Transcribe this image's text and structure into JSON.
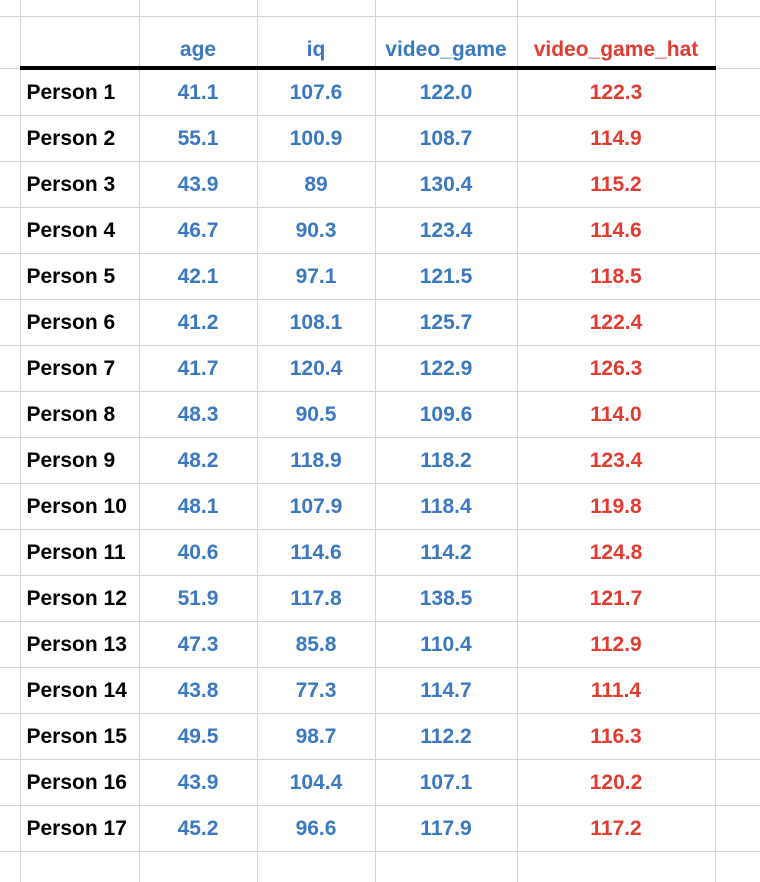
{
  "sheet": {
    "colors": {
      "data": "#3a78c2",
      "predicted": "#e23b30",
      "label": "#000000",
      "grid": "#d4d4d4",
      "header_rule": "#000000"
    },
    "columns": [
      {
        "key": "age",
        "label": "age",
        "color": "#3a78c2"
      },
      {
        "key": "iq",
        "label": "iq",
        "color": "#3a78c2"
      },
      {
        "key": "video_game",
        "label": "video_game",
        "color": "#3a78c2"
      },
      {
        "key": "video_game_hat",
        "label": "video_game_hat",
        "color": "#e23b30"
      }
    ],
    "rows": [
      {
        "label": "Person 1",
        "values": [
          "41.1",
          "107.6",
          "122.0",
          "122.3"
        ]
      },
      {
        "label": "Person 2",
        "values": [
          "55.1",
          "100.9",
          "108.7",
          "114.9"
        ]
      },
      {
        "label": "Person 3",
        "values": [
          "43.9",
          "89",
          "130.4",
          "115.2"
        ]
      },
      {
        "label": "Person 4",
        "values": [
          "46.7",
          "90.3",
          "123.4",
          "114.6"
        ]
      },
      {
        "label": "Person 5",
        "values": [
          "42.1",
          "97.1",
          "121.5",
          "118.5"
        ]
      },
      {
        "label": "Person 6",
        "values": [
          "41.2",
          "108.1",
          "125.7",
          "122.4"
        ]
      },
      {
        "label": "Person 7",
        "values": [
          "41.7",
          "120.4",
          "122.9",
          "126.3"
        ]
      },
      {
        "label": "Person 8",
        "values": [
          "48.3",
          "90.5",
          "109.6",
          "114.0"
        ]
      },
      {
        "label": "Person 9",
        "values": [
          "48.2",
          "118.9",
          "118.2",
          "123.4"
        ]
      },
      {
        "label": "Person 10",
        "values": [
          "48.1",
          "107.9",
          "118.4",
          "119.8"
        ]
      },
      {
        "label": "Person 11",
        "values": [
          "40.6",
          "114.6",
          "114.2",
          "124.8"
        ]
      },
      {
        "label": "Person 12",
        "values": [
          "51.9",
          "117.8",
          "138.5",
          "121.7"
        ]
      },
      {
        "label": "Person 13",
        "values": [
          "47.3",
          "85.8",
          "110.4",
          "112.9"
        ]
      },
      {
        "label": "Person 14",
        "values": [
          "43.8",
          "77.3",
          "114.7",
          "111.4"
        ]
      },
      {
        "label": "Person 15",
        "values": [
          "49.5",
          "98.7",
          "112.2",
          "116.3"
        ]
      },
      {
        "label": "Person 16",
        "values": [
          "43.9",
          "104.4",
          "107.1",
          "120.2"
        ]
      },
      {
        "label": "Person 17",
        "values": [
          "45.2",
          "96.6",
          "117.9",
          "117.2"
        ]
      }
    ]
  }
}
